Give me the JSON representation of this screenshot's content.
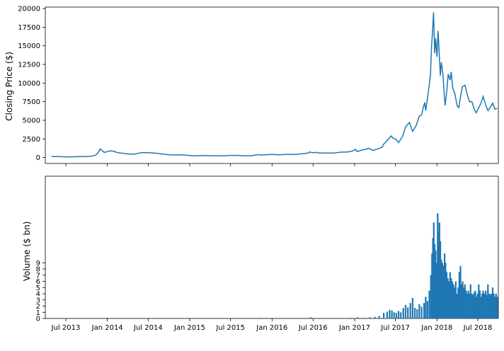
{
  "chart_data": [
    {
      "type": "line",
      "ylabel": "Closing Price ($)",
      "xlabel": "",
      "title": "",
      "color": "#1f77b4",
      "xlim": [
        "2013-04-01",
        "2018-09-30"
      ],
      "ylim": [
        -800,
        20200
      ],
      "yticks": [
        0,
        2500,
        5000,
        7500,
        10000,
        12500,
        15000,
        17500,
        20000
      ],
      "ytick_labels": [
        "0",
        "2500",
        "5000",
        "7500",
        "10000",
        "12500",
        "15000",
        "17500",
        "20000"
      ],
      "xtick_dates": [
        "2013-07-01",
        "2014-01-01",
        "2014-07-01",
        "2015-01-01",
        "2015-07-01",
        "2016-01-01",
        "2016-07-01",
        "2017-01-01",
        "2017-07-01",
        "2018-01-01",
        "2018-07-01"
      ],
      "series": [
        {
          "x": [
            "2013-04-28",
            "2013-06-01",
            "2013-07-01",
            "2013-08-01",
            "2013-09-01",
            "2013-10-01",
            "2013-10-25",
            "2013-11-10",
            "2013-11-20",
            "2013-11-30",
            "2013-12-05",
            "2013-12-10",
            "2013-12-18",
            "2014-01-01",
            "2014-01-15",
            "2014-02-01",
            "2014-02-15",
            "2014-03-01",
            "2014-04-01",
            "2014-04-15",
            "2014-05-01",
            "2014-06-01",
            "2014-07-01",
            "2014-08-01",
            "2014-09-01",
            "2014-10-01",
            "2014-11-01",
            "2014-12-01",
            "2015-01-15",
            "2015-02-01",
            "2015-03-01",
            "2015-04-01",
            "2015-05-01",
            "2015-06-01",
            "2015-07-01",
            "2015-08-01",
            "2015-09-01",
            "2015-10-01",
            "2015-11-04",
            "2015-11-15",
            "2015-12-01",
            "2016-01-01",
            "2016-02-01",
            "2016-03-01",
            "2016-04-01",
            "2016-05-01",
            "2016-06-10",
            "2016-06-17",
            "2016-06-25",
            "2016-07-15",
            "2016-08-01",
            "2016-09-01",
            "2016-10-01",
            "2016-11-01",
            "2016-12-01",
            "2016-12-25",
            "2017-01-05",
            "2017-01-12",
            "2017-02-01",
            "2017-02-20",
            "2017-03-03",
            "2017-03-25",
            "2017-04-15",
            "2017-05-01",
            "2017-05-10",
            "2017-05-20",
            "2017-05-25",
            "2017-06-01",
            "2017-06-12",
            "2017-06-20",
            "2017-07-01",
            "2017-07-15",
            "2017-08-01",
            "2017-08-15",
            "2017-09-01",
            "2017-09-15",
            "2017-10-01",
            "2017-10-15",
            "2017-10-25",
            "2017-11-01",
            "2017-11-08",
            "2017-11-12",
            "2017-11-20",
            "2017-11-28",
            "2017-12-03",
            "2017-12-08",
            "2017-12-12",
            "2017-12-17",
            "2017-12-22",
            "2017-12-26",
            "2018-01-01",
            "2018-01-06",
            "2018-01-10",
            "2018-01-16",
            "2018-01-20",
            "2018-01-28",
            "2018-02-01",
            "2018-02-06",
            "2018-02-12",
            "2018-02-20",
            "2018-02-28",
            "2018-03-05",
            "2018-03-12",
            "2018-03-20",
            "2018-04-01",
            "2018-04-08",
            "2018-04-16",
            "2018-04-24",
            "2018-05-05",
            "2018-05-15",
            "2018-05-25",
            "2018-06-05",
            "2018-06-15",
            "2018-06-24",
            "2018-07-05",
            "2018-07-15",
            "2018-07-25",
            "2018-08-05",
            "2018-08-15",
            "2018-08-25",
            "2018-09-05",
            "2018-09-15",
            "2018-09-25"
          ],
          "values": [
            135,
            120,
            88,
            105,
            135,
            140,
            190,
            320,
            600,
            1150,
            1030,
            900,
            680,
            800,
            900,
            820,
            650,
            600,
            480,
            450,
            460,
            650,
            640,
            590,
            480,
            370,
            340,
            360,
            220,
            240,
            270,
            240,
            240,
            230,
            280,
            280,
            230,
            240,
            400,
            330,
            360,
            420,
            370,
            420,
            420,
            450,
            600,
            760,
            650,
            680,
            600,
            600,
            610,
            720,
            750,
            900,
            1100,
            800,
            1000,
            1100,
            1250,
            950,
            1180,
            1350,
            1800,
            2100,
            2300,
            2500,
            2900,
            2600,
            2500,
            2000,
            2800,
            4100,
            4700,
            3500,
            4300,
            5600,
            5700,
            6700,
            7400,
            6300,
            8000,
            9800,
            11000,
            15000,
            16700,
            19500,
            14000,
            16000,
            13500,
            17000,
            14500,
            11000,
            12800,
            11000,
            9000,
            7000,
            8500,
            11200,
            10400,
            11500,
            9300,
            8700,
            6900,
            6700,
            8300,
            9500,
            9700,
            8500,
            7500,
            7500,
            6500,
            6000,
            6700,
            7300,
            8200,
            7000,
            6300,
            6700,
            7300,
            6500,
            6600
          ]
        }
      ]
    },
    {
      "type": "bar",
      "ylabel": "Volume ($ bn)",
      "xlabel": "",
      "title": "",
      "color": "#1f77b4",
      "xlim": [
        "2013-04-01",
        "2018-09-30"
      ],
      "ylim": [
        0,
        23
      ],
      "yticks": [
        0,
        1,
        2,
        3,
        4,
        5,
        6,
        7,
        8,
        9
      ],
      "ytick_labels": [
        "0",
        "1",
        "2",
        "3",
        "4",
        "5",
        "6",
        "7",
        "8",
        "9"
      ],
      "xtick_dates": [
        "2013-07-01",
        "2014-01-01",
        "2014-07-01",
        "2015-01-01",
        "2015-07-01",
        "2016-01-01",
        "2016-07-01",
        "2017-01-01",
        "2017-07-01",
        "2018-01-01",
        "2018-07-01"
      ],
      "xtick_labels": [
        "Jul 2013",
        "Jan 2014",
        "Jul 2014",
        "Jan 2015",
        "Jul 2015",
        "Jan 2016",
        "Jul 2016",
        "Jan 2017",
        "Jul 2017",
        "Jan 2018",
        "Jul 2018"
      ],
      "series": [
        {
          "x": [
            "2013-12-31",
            "2014-01-20",
            "2014-02-10",
            "2014-03-15",
            "2014-05-15",
            "2014-07-15",
            "2014-09-15",
            "2014-11-15",
            "2015-01-15",
            "2015-03-15",
            "2015-05-15",
            "2015-07-15",
            "2015-09-15",
            "2015-11-10",
            "2016-01-15",
            "2016-03-15",
            "2016-05-15",
            "2016-06-20",
            "2016-08-15",
            "2016-10-15",
            "2016-12-15",
            "2017-01-15",
            "2017-02-15",
            "2017-03-10",
            "2017-04-01",
            "2017-04-20",
            "2017-05-10",
            "2017-05-25",
            "2017-06-05",
            "2017-06-15",
            "2017-06-25",
            "2017-07-05",
            "2017-07-15",
            "2017-07-25",
            "2017-08-05",
            "2017-08-15",
            "2017-08-25",
            "2017-09-05",
            "2017-09-15",
            "2017-09-25",
            "2017-10-05",
            "2017-10-15",
            "2017-10-25",
            "2017-11-05",
            "2017-11-12",
            "2017-11-20",
            "2017-11-28",
            "2017-12-05",
            "2017-12-10",
            "2017-12-14",
            "2017-12-18",
            "2017-12-22",
            "2017-12-26",
            "2017-12-30",
            "2018-01-04",
            "2018-01-08",
            "2018-01-12",
            "2018-01-16",
            "2018-01-20",
            "2018-01-25",
            "2018-01-30",
            "2018-02-04",
            "2018-02-08",
            "2018-02-13",
            "2018-02-18",
            "2018-02-23",
            "2018-02-28",
            "2018-03-05",
            "2018-03-10",
            "2018-03-15",
            "2018-03-20",
            "2018-03-25",
            "2018-03-30",
            "2018-04-05",
            "2018-04-10",
            "2018-04-15",
            "2018-04-20",
            "2018-04-25",
            "2018-04-30",
            "2018-05-05",
            "2018-05-10",
            "2018-05-15",
            "2018-05-20",
            "2018-05-25",
            "2018-05-30",
            "2018-06-05",
            "2018-06-10",
            "2018-06-15",
            "2018-06-20",
            "2018-06-25",
            "2018-06-30",
            "2018-07-05",
            "2018-07-10",
            "2018-07-15",
            "2018-07-20",
            "2018-07-25",
            "2018-07-30",
            "2018-08-05",
            "2018-08-10",
            "2018-08-15",
            "2018-08-20",
            "2018-08-25",
            "2018-08-30",
            "2018-09-05",
            "2018-09-10",
            "2018-09-15",
            "2018-09-20",
            "2018-09-25"
          ],
          "values": [
            0.1,
            0.08,
            0.07,
            0.05,
            0.03,
            0.03,
            0.03,
            0.03,
            0.05,
            0.03,
            0.02,
            0.03,
            0.03,
            0.1,
            0.06,
            0.05,
            0.08,
            0.2,
            0.08,
            0.07,
            0.1,
            0.2,
            0.1,
            0.2,
            0.25,
            0.4,
            0.9,
            1.1,
            1.4,
            1.3,
            1.0,
            0.9,
            1.2,
            1.0,
            1.7,
            2.2,
            1.8,
            2.5,
            3.3,
            1.7,
            1.5,
            2.3,
            1.9,
            2.5,
            3.5,
            2.8,
            4.5,
            7.0,
            10.5,
            13.0,
            15.5,
            12.0,
            11.0,
            9.0,
            17.0,
            14.0,
            15.5,
            12.5,
            9.5,
            9.0,
            8.5,
            10.5,
            9.0,
            7.5,
            6.5,
            6.0,
            7.5,
            6.5,
            6.0,
            5.5,
            5.0,
            6.0,
            4.0,
            5.0,
            7.5,
            8.5,
            5.5,
            6.0,
            5.0,
            5.5,
            4.5,
            4.0,
            4.5,
            4.0,
            5.5,
            4.0,
            3.8,
            4.2,
            4.5,
            3.5,
            4.0,
            5.5,
            4.5,
            3.5,
            4.0,
            4.5,
            4.0,
            4.5,
            3.8,
            5.5,
            4.0,
            3.8,
            4.0,
            5.0,
            4.0,
            3.5,
            4.0,
            3.5
          ]
        }
      ]
    }
  ]
}
